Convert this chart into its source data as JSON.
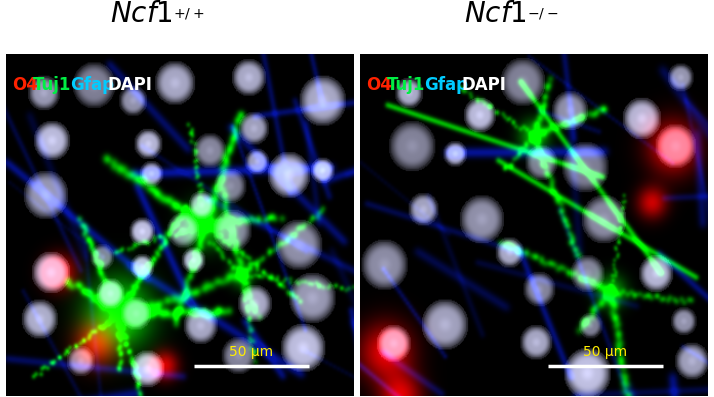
{
  "title_left": "Ncf1",
  "title_left_super": "+/+",
  "title_right": "Ncf1",
  "title_right_super": "−/−",
  "label_items": [
    {
      "text": "O4",
      "color": "#ff2200"
    },
    {
      "text": "Tuj1",
      "color": "#00ee44"
    },
    {
      "text": "Gfap",
      "color": "#00ccff"
    },
    {
      "text": "DAPI",
      "color": "#ffffff"
    }
  ],
  "scalebar_text": "50 μm",
  "scalebar_color": "#ffee00",
  "background_color": "#ffffff",
  "title_fontsize": 20,
  "label_fontsize": 12,
  "scalebar_fontsize": 10,
  "fig_width": 7.14,
  "fig_height": 3.97
}
